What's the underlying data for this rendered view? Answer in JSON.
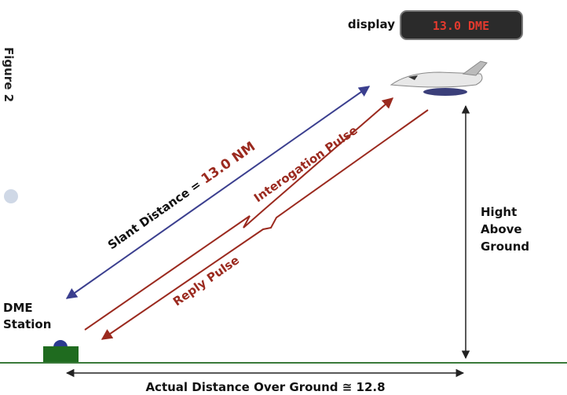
{
  "figure_label": "Figure 2",
  "display": {
    "label": "display",
    "readout": "13.0 DME"
  },
  "slant": {
    "prefix": "Slant Distance = ",
    "value": "13.0 NM"
  },
  "interrogation": "Interogation  Pulse",
  "reply": "Reply Pulse",
  "station": [
    "DME",
    "Station"
  ],
  "height": [
    "Hight",
    "Above",
    "Ground"
  ],
  "ground_distance": "Actual Distance Over Ground ≅ 12.8"
}
